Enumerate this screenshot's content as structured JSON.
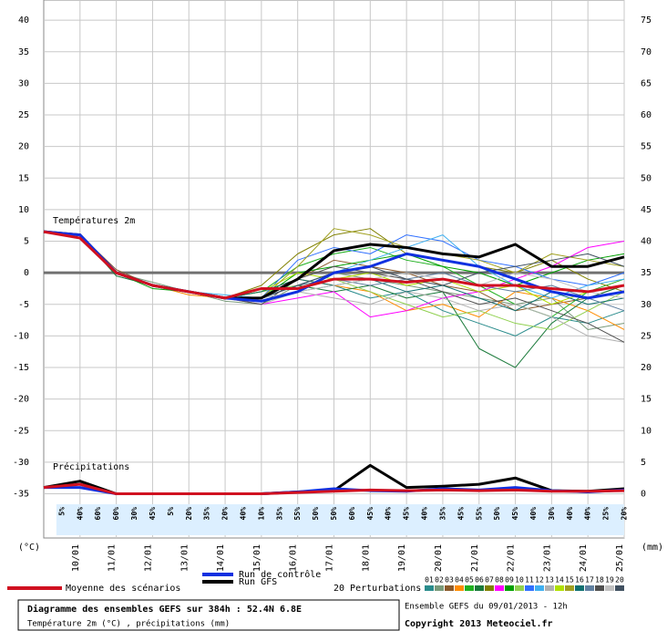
{
  "chart_data": [
    {
      "type": "line",
      "annotation": "Températures 2m",
      "y_unit_label": "(°C)",
      "x": [
        0,
        24,
        48,
        72,
        96,
        120,
        144,
        168,
        192,
        216,
        240,
        264,
        288,
        312,
        336,
        360,
        384
      ],
      "xlim": [
        0,
        384
      ],
      "xticks": [
        {
          "value": 24,
          "label": "10/01"
        },
        {
          "value": 48,
          "label": "11/01"
        },
        {
          "value": 72,
          "label": "12/01"
        },
        {
          "value": 96,
          "label": "13/01"
        },
        {
          "value": 120,
          "label": "14/01"
        },
        {
          "value": 144,
          "label": "15/01"
        },
        {
          "value": 168,
          "label": "16/01"
        },
        {
          "value": 192,
          "label": "17/01"
        },
        {
          "value": 216,
          "label": "18/01"
        },
        {
          "value": 240,
          "label": "19/01"
        },
        {
          "value": 264,
          "label": "20/01"
        },
        {
          "value": 288,
          "label": "21/01"
        },
        {
          "value": 312,
          "label": "22/01"
        },
        {
          "value": 336,
          "label": "23/01"
        },
        {
          "value": 360,
          "label": "24/01"
        },
        {
          "value": 384,
          "label": "25/01"
        }
      ],
      "ylim": [
        -42,
        43.2
      ],
      "yticks": [
        -35,
        -30,
        -25,
        -20,
        -15,
        -10,
        -5,
        0,
        5,
        10,
        15,
        20,
        25,
        30,
        35,
        40
      ],
      "grid": true,
      "perturbations_label": "20 Perturbations",
      "perturbations": [
        {
          "name": "01",
          "color": "#2a8c8c",
          "values": [
            6.5,
            6,
            0,
            -2,
            -3,
            -4,
            -4,
            -3,
            -2,
            -4,
            -3,
            -6,
            -8,
            -10,
            -7,
            -8,
            -6
          ]
        },
        {
          "name": "02",
          "color": "#7a9a7a",
          "values": [
            6.5,
            6,
            0,
            -1.5,
            -3,
            -4.5,
            -5,
            -2,
            0,
            -1,
            -2,
            -3,
            -4,
            -5,
            -4,
            -9,
            -8
          ]
        },
        {
          "name": "03",
          "color": "#8b5a2b",
          "values": [
            6.5,
            6,
            0.5,
            -2,
            -3,
            -4,
            -4,
            -1,
            2,
            1,
            0,
            -2,
            -3,
            -6,
            -5,
            -4,
            -2
          ]
        },
        {
          "name": "04",
          "color": "#ff8c00",
          "values": [
            6.5,
            6,
            0,
            -2,
            -3.5,
            -4,
            -3,
            -1,
            -2,
            -3,
            -6,
            -5,
            -7,
            -3,
            -4,
            -6,
            -9
          ]
        },
        {
          "name": "05",
          "color": "#20b020",
          "values": [
            6.5,
            5.5,
            0,
            -2,
            -3,
            -4,
            -3,
            1,
            3,
            4,
            2,
            1,
            -2,
            -5,
            -7,
            -3,
            -1
          ]
        },
        {
          "name": "06",
          "color": "#1a7a3a",
          "values": [
            6.5,
            6,
            -0.5,
            -2,
            -3,
            -4,
            -4,
            -2,
            -3,
            -2,
            -4,
            -3,
            -12,
            -15,
            -8,
            -4,
            -2
          ]
        },
        {
          "name": "07",
          "color": "#808000",
          "values": [
            6.5,
            6,
            0,
            -2,
            -3,
            -4,
            -2,
            3,
            6,
            7,
            3,
            2,
            1,
            0,
            2,
            -1,
            -3
          ]
        },
        {
          "name": "08",
          "color": "#ff00ff",
          "values": [
            6.5,
            6,
            0,
            -2,
            -3,
            -4,
            -5,
            -4,
            -3,
            -7,
            -6,
            -4,
            -3,
            -1,
            1,
            4,
            5
          ]
        },
        {
          "name": "09",
          "color": "#00a000",
          "values": [
            6.5,
            6,
            0,
            -2.5,
            -3,
            -4,
            -4,
            0,
            1,
            2,
            3,
            1,
            0,
            -2,
            0,
            2,
            3
          ]
        },
        {
          "name": "10",
          "color": "#90d050",
          "values": [
            6.5,
            6,
            0,
            -2,
            -3,
            -4,
            -3,
            -2,
            -1,
            -3,
            -5,
            -7,
            -6,
            -8,
            -9,
            -6,
            -3
          ]
        },
        {
          "name": "11",
          "color": "#3070ff",
          "values": [
            6.5,
            6,
            0,
            -2,
            -3,
            -4,
            -4,
            2,
            4,
            3,
            6,
            5,
            2,
            1,
            -1,
            -2,
            0
          ]
        },
        {
          "name": "12",
          "color": "#40b0f0",
          "values": [
            6.5,
            6,
            0,
            -2,
            -3,
            -3.5,
            -4,
            -2,
            0,
            2,
            4,
            6,
            1,
            -2,
            -4,
            -2,
            -1
          ]
        },
        {
          "name": "13",
          "color": "#b0b0b0",
          "values": [
            6.5,
            6,
            0,
            -2,
            -3,
            -4,
            -5,
            -3,
            -4,
            -5,
            -3,
            -4,
            -6,
            -5,
            -7,
            -10,
            -11
          ]
        },
        {
          "name": "14",
          "color": "#b0e000",
          "values": [
            6.5,
            6,
            0,
            -2,
            -3,
            -4,
            -3,
            0,
            -1,
            0,
            -2,
            -1,
            -3,
            -2,
            -5,
            -3,
            -2
          ]
        },
        {
          "name": "15",
          "color": "#a0a020",
          "values": [
            6.5,
            6,
            0,
            -2,
            -3,
            -4,
            -4,
            1,
            7,
            6,
            4,
            3,
            2,
            0,
            3,
            2,
            1
          ]
        },
        {
          "name": "16",
          "color": "#107070",
          "values": [
            6.5,
            6,
            0,
            -2,
            -3,
            -4,
            -3,
            -1,
            -2,
            -1,
            -3,
            -2,
            -4,
            -6,
            -3,
            -5,
            -4
          ]
        },
        {
          "name": "17",
          "color": "#6080a0",
          "values": [
            6.5,
            6,
            0,
            -2,
            -3,
            -4,
            -4,
            -2,
            -1,
            -2,
            -1,
            0,
            -2,
            -3,
            -2,
            -4,
            -6
          ]
        },
        {
          "name": "18",
          "color": "#505050",
          "values": [
            6.5,
            6,
            0,
            -2,
            -3,
            -4,
            -5,
            -1,
            1,
            0,
            -1,
            -3,
            -5,
            -4,
            -6,
            -8,
            -11
          ]
        },
        {
          "name": "19",
          "color": "#c0c0c0",
          "values": [
            6.5,
            6,
            0,
            -2,
            -3,
            -4,
            -4,
            -3,
            -2,
            -1,
            0,
            -1,
            -2,
            0,
            -1,
            -3,
            -4
          ]
        },
        {
          "name": "20",
          "color": "#405060",
          "values": [
            6.5,
            6,
            0,
            -2,
            -3,
            -4,
            -4,
            -2,
            0,
            1,
            -1,
            -2,
            0,
            1,
            2,
            3,
            1
          ]
        }
      ],
      "series": [
        {
          "name": "Run GFS",
          "color": "#000000",
          "values": [
            6.5,
            6,
            0,
            -2,
            -3,
            -4,
            -4,
            -1,
            3.5,
            4.5,
            4,
            3,
            2.5,
            4.5,
            1,
            1,
            2.5
          ]
        },
        {
          "name": "Run de contrôle",
          "color": "#1030e0",
          "values": [
            6.5,
            6,
            0,
            -2,
            -3,
            -4,
            -4.5,
            -3,
            0,
            1,
            3,
            2,
            1,
            -1,
            -3,
            -4,
            -3
          ]
        },
        {
          "name": "Moyenne des scénarios",
          "color": "#d01020",
          "values": [
            6.5,
            5.5,
            0,
            -2,
            -3,
            -4,
            -2.5,
            -2.5,
            -1,
            -1,
            -1.5,
            -1,
            -2,
            -2,
            -2.5,
            -3,
            -2
          ]
        }
      ]
    },
    {
      "type": "line",
      "annotation": "Précipitations",
      "y_unit_label": "(mm)",
      "x": [
        0,
        24,
        48,
        72,
        96,
        120,
        144,
        168,
        192,
        216,
        240,
        264,
        288,
        312,
        336,
        360,
        384
      ],
      "ylim": [
        -7,
        78.2
      ],
      "yticks": [
        0,
        5,
        10,
        15,
        20,
        25,
        30,
        35,
        40,
        45,
        50,
        55,
        60,
        65,
        70,
        75
      ],
      "series": [
        {
          "color": "#000000",
          "values": [
            1,
            2,
            0,
            0,
            0,
            0,
            0,
            0.3,
            0.5,
            4.5,
            1,
            1.2,
            1.5,
            2.5,
            0.5,
            0.4,
            0.8
          ]
        },
        {
          "color": "#1030e0",
          "values": [
            1,
            1,
            0,
            0,
            0,
            0,
            0,
            0.3,
            0.8,
            0.5,
            0.4,
            0.8,
            0.6,
            1,
            0.5,
            0.3,
            0.6
          ]
        },
        {
          "color": "#d01020",
          "values": [
            1,
            1.5,
            0,
            0,
            0,
            0,
            0,
            0.2,
            0.4,
            0.6,
            0.5,
            0.6,
            0.5,
            0.6,
            0.4,
            0.4,
            0.5
          ]
        }
      ],
      "probability": {
        "x": [
          12,
          24,
          36,
          48,
          60,
          72,
          84,
          96,
          108,
          120,
          132,
          144,
          156,
          168,
          180,
          192,
          204,
          216,
          228,
          240,
          252,
          264,
          276,
          288,
          300,
          312,
          324,
          336,
          348,
          360,
          372,
          384
        ],
        "values": [
          5,
          40,
          60,
          60,
          30,
          45,
          5,
          20,
          35,
          20,
          40,
          10,
          35,
          55,
          50,
          50,
          60,
          45,
          40,
          45,
          40,
          35,
          45,
          55,
          50,
          45,
          40,
          30,
          40,
          40,
          25,
          20
        ],
        "value_labels": [
          "5%",
          "40%",
          "60%",
          "60%",
          "30%",
          "45%",
          "5%",
          "20%",
          "35%",
          "20%",
          "40%",
          "10%",
          "35%",
          "55%",
          "50%",
          "50%",
          "60%",
          "45%",
          "40%",
          "45%",
          "40%",
          "35%",
          "45%",
          "55%",
          "50%",
          "45%",
          "40%",
          "30%",
          "40%",
          "40%",
          "25%",
          "20%"
        ],
        "color": "#2060ff"
      }
    }
  ],
  "footer": {
    "title": "Diagramme des ensembles GEFS sur 384h : 52.4N 6.8E",
    "subtitle": "Température 2m (°C) , précipitations (mm)",
    "ensemble": "Ensemble GEFS du 09/01/2013 - 12h",
    "copyright": "Copyright 2013 Meteociel.fr"
  }
}
